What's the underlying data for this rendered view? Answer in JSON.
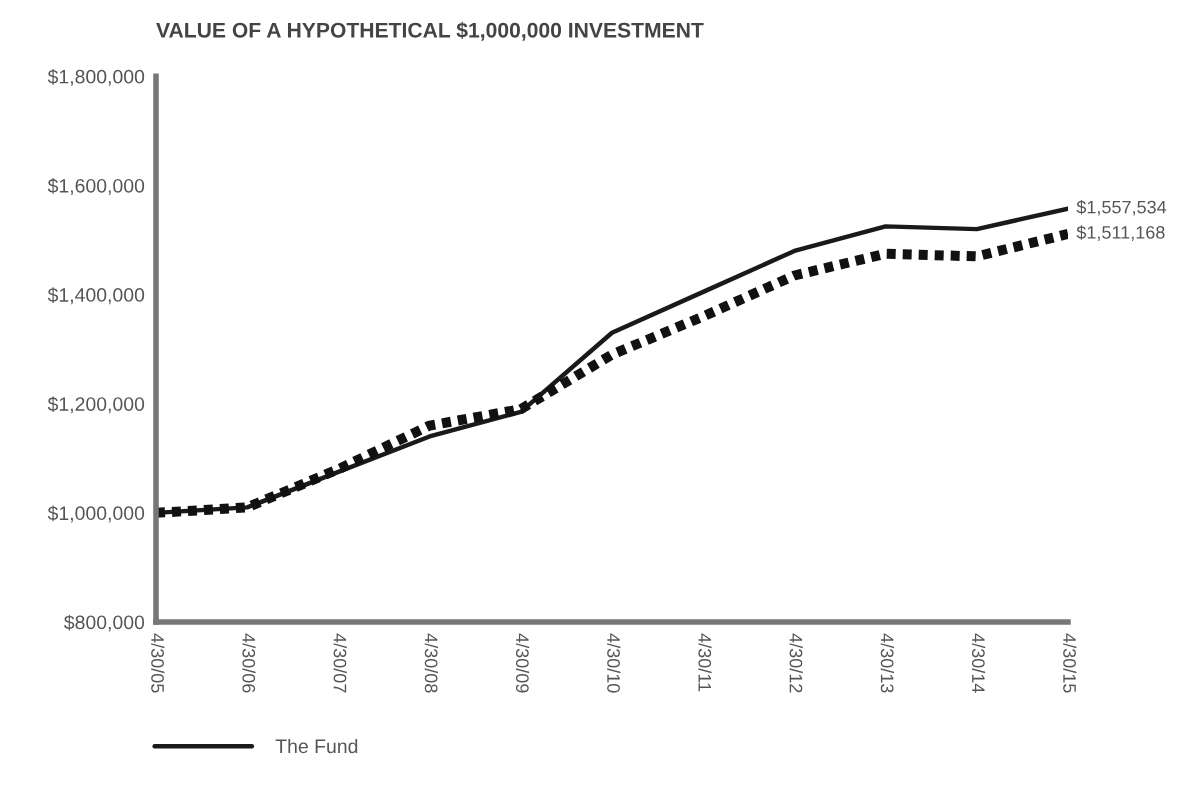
{
  "chart_data": {
    "type": "line",
    "title": "VALUE OF A HYPOTHETICAL $1,000,000 INVESTMENT",
    "categories": [
      "4/30/05",
      "4/30/06",
      "4/30/07",
      "4/30/08",
      "4/30/09",
      "4/30/10",
      "4/30/11",
      "4/30/12",
      "4/30/13",
      "4/30/14",
      "4/30/15"
    ],
    "series": [
      {
        "name": "The Fund",
        "color": "#1a1a1a",
        "line_style": "solid",
        "values": [
          1000000,
          1010000,
          1075000,
          1140000,
          1185000,
          1330000,
          1405000,
          1480000,
          1525000,
          1520000,
          1557534
        ],
        "value_labels": [
          null,
          null,
          null,
          null,
          null,
          null,
          null,
          null,
          null,
          null,
          "$1,557,534"
        ]
      },
      {
        "color": "#111111",
        "line_style": "dotted",
        "values": [
          1000000,
          1010000,
          1080000,
          1160000,
          1190000,
          1290000,
          1360000,
          1435000,
          1475000,
          1470000,
          1511168
        ],
        "value_labels": [
          null,
          null,
          null,
          null,
          null,
          null,
          null,
          null,
          null,
          null,
          "$1,511,168"
        ]
      }
    ],
    "ylim": [
      800000,
      1800000
    ],
    "yticks": [
      {
        "value": 800000,
        "label": "$800,000"
      },
      {
        "value": 1000000,
        "label": "$1,000,000"
      },
      {
        "value": 1200000,
        "label": "$1,200,000"
      },
      {
        "value": 1400000,
        "label": "$1,400,000"
      },
      {
        "value": 1600000,
        "label": "$1,600,000"
      },
      {
        "value": 1800000,
        "label": "$1,800,000"
      }
    ],
    "legend": "bottom left"
  }
}
